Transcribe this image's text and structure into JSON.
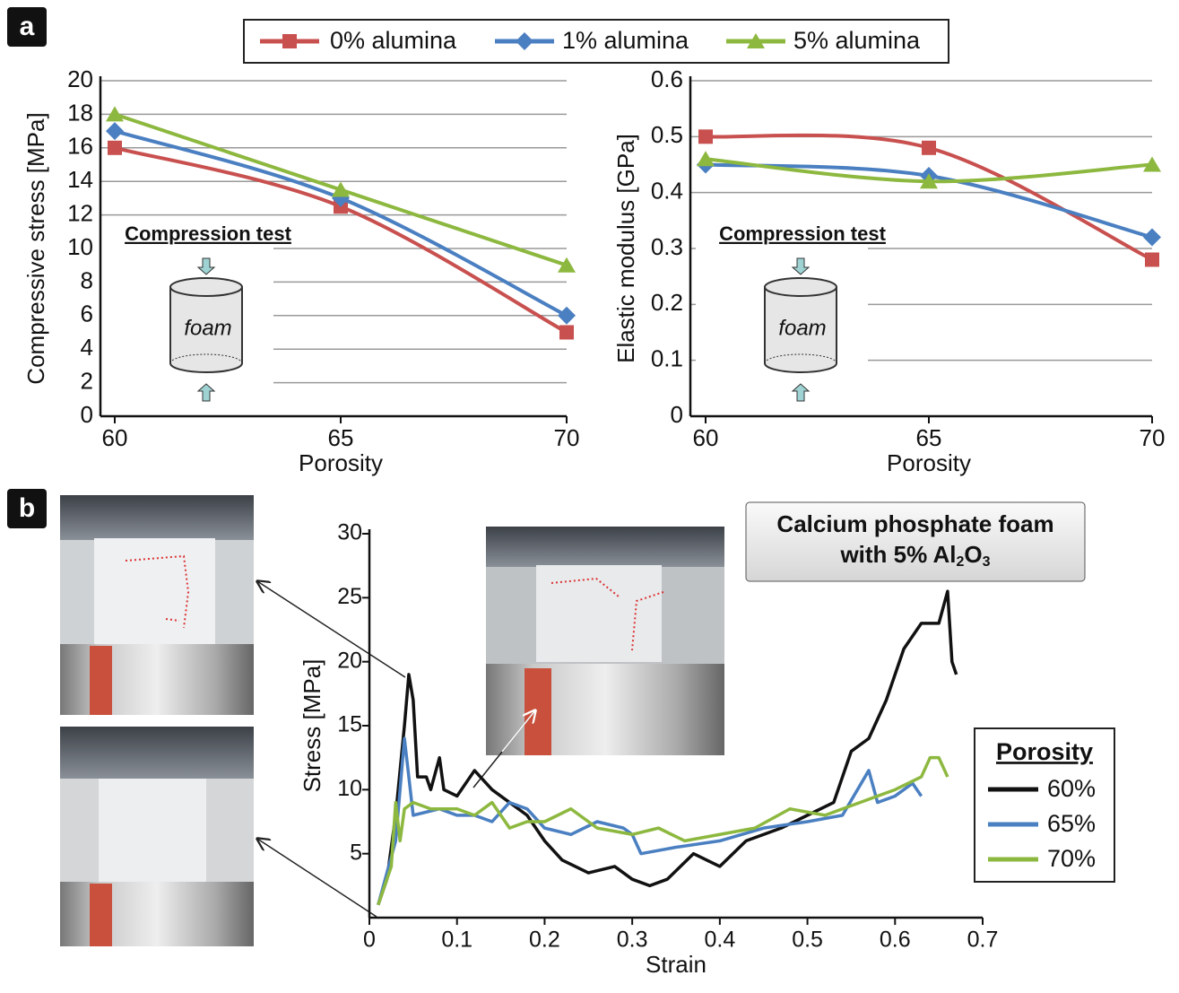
{
  "chart_data": [
    {
      "type": "line",
      "panel_label": "a",
      "x": [
        60,
        65,
        70
      ],
      "xlim": [
        60,
        70
      ],
      "xticks": [
        60,
        65,
        70
      ],
      "ylim": [
        0,
        20
      ],
      "yticks": [
        0,
        2,
        4,
        6,
        8,
        10,
        12,
        14,
        16,
        18,
        20
      ],
      "grid": true,
      "smooth": true,
      "x_label": "Porosity",
      "y_label": "Compressive stress [MPa]",
      "annotation": "Compression test",
      "inset_label": "foam",
      "series": [
        {
          "name": "0% alumina",
          "color": "#c8504f",
          "marker": "square",
          "values": [
            16,
            12.5,
            5
          ]
        },
        {
          "name": "1% alumina",
          "color": "#4a7fc1",
          "marker": "diamond",
          "values": [
            17,
            13,
            6
          ]
        },
        {
          "name": "5% alumina",
          "color": "#8db83f",
          "marker": "triangle",
          "values": [
            18,
            13.5,
            9
          ]
        }
      ]
    },
    {
      "type": "line",
      "x": [
        60,
        65,
        70
      ],
      "xlim": [
        60,
        70
      ],
      "xticks": [
        60,
        65,
        70
      ],
      "ylim": [
        0,
        0.6
      ],
      "yticks": [
        0,
        0.1,
        0.2,
        0.3,
        0.4,
        0.5,
        0.6
      ],
      "grid": true,
      "smooth": true,
      "x_label": "Porosity",
      "y_label": "Elastic modulus [GPa]",
      "annotation": "Compression test",
      "inset_label": "foam",
      "series": [
        {
          "color": "#c8504f",
          "marker": "square",
          "values": [
            0.5,
            0.48,
            0.28
          ]
        },
        {
          "color": "#4a7fc1",
          "marker": "diamond",
          "values": [
            0.45,
            0.43,
            0.32
          ]
        },
        {
          "color": "#8db83f",
          "marker": "triangle",
          "values": [
            0.46,
            0.42,
            0.45
          ]
        }
      ]
    },
    {
      "type": "line",
      "panel_label": "b",
      "title": {
        "line1": "Calcium phosphate foam",
        "line2": "with 5% Al",
        "sub1": "2",
        "mid": "O",
        "sub2": "3"
      },
      "xlim": [
        0,
        0.7
      ],
      "xticks": [
        0,
        0.1,
        0.2,
        0.3,
        0.4,
        0.5,
        0.6,
        0.7
      ],
      "ylim": [
        0,
        30
      ],
      "yticks": [
        5,
        10,
        15,
        20,
        25,
        30
      ],
      "x_label": "Strain",
      "y_label": "Stress [MPa]",
      "legend_title": "Porosity",
      "series": [
        {
          "name": "60%",
          "color": "#111111",
          "x": [
            0.01,
            0.02,
            0.03,
            0.04,
            0.045,
            0.05,
            0.055,
            0.065,
            0.07,
            0.08,
            0.085,
            0.1,
            0.12,
            0.14,
            0.16,
            0.18,
            0.2,
            0.22,
            0.25,
            0.28,
            0.3,
            0.32,
            0.34,
            0.37,
            0.4,
            0.43,
            0.47,
            0.5,
            0.53,
            0.55,
            0.57,
            0.59,
            0.61,
            0.63,
            0.65,
            0.66,
            0.665,
            0.67
          ],
          "values": [
            1,
            3,
            8,
            15,
            19,
            17,
            11,
            11,
            10,
            12.5,
            10,
            9.5,
            11.5,
            10,
            9,
            8,
            6,
            4.5,
            3.5,
            4,
            3,
            2.5,
            3,
            5,
            4,
            6,
            7,
            8,
            9,
            13,
            14,
            17,
            21,
            23,
            23,
            25.5,
            20,
            19
          ]
        },
        {
          "name": "65%",
          "color": "#4a7fc1",
          "x": [
            0.01,
            0.03,
            0.04,
            0.045,
            0.05,
            0.08,
            0.1,
            0.12,
            0.14,
            0.16,
            0.18,
            0.2,
            0.23,
            0.26,
            0.29,
            0.3,
            0.31,
            0.35,
            0.4,
            0.45,
            0.5,
            0.54,
            0.57,
            0.58,
            0.6,
            0.62,
            0.63
          ],
          "values": [
            1,
            6,
            14,
            11,
            8,
            8.5,
            8,
            8,
            7.5,
            9,
            8.5,
            7,
            6.5,
            7.5,
            7,
            6.5,
            5,
            5.5,
            6,
            7,
            7.5,
            8,
            11.5,
            9,
            9.5,
            10.5,
            9.5
          ]
        },
        {
          "name": "70%",
          "color": "#8db83f",
          "x": [
            0.01,
            0.025,
            0.03,
            0.035,
            0.04,
            0.05,
            0.07,
            0.1,
            0.12,
            0.14,
            0.16,
            0.18,
            0.2,
            0.23,
            0.26,
            0.3,
            0.33,
            0.36,
            0.4,
            0.44,
            0.48,
            0.52,
            0.56,
            0.6,
            0.63,
            0.64,
            0.65,
            0.66
          ],
          "values": [
            1,
            4,
            9,
            6,
            8.5,
            9,
            8.5,
            8.5,
            8,
            9,
            7,
            7.5,
            7.5,
            8.5,
            7,
            6.5,
            7,
            6,
            6.5,
            7,
            8.5,
            8,
            9,
            10,
            11,
            12.5,
            12.5,
            11
          ]
        }
      ]
    }
  ]
}
